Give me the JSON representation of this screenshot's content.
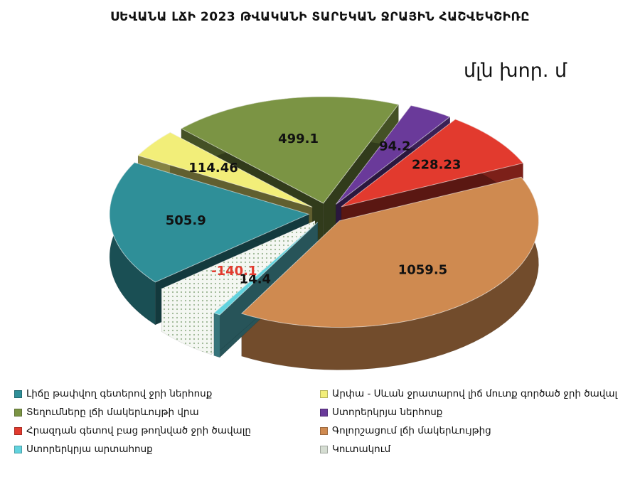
{
  "chart_data": {
    "type": "pie",
    "title": "ՍԵՎԱՆԱ ԼՃԻ 2023 ԹՎԱԿԱՆԻ ՏԱՐԵԿԱՆ ՋՐԱՅԻՆ ՀԱՇՎԵԿՇԻՌԸ",
    "unit": "մլն խոր. մ",
    "slices": [
      {
        "label": "Լիճը թափվող գետերով ջրի ներհոսք",
        "value": 505.9,
        "display": "505.9",
        "color": "#2f8f98",
        "label_color": "#111111"
      },
      {
        "label": "Արփա - Սևան ջրատարով լիճ մուտք գործած ջրի ծավալ",
        "value": 114.46,
        "display": "114.46",
        "color": "#f2ee79",
        "label_color": "#111111"
      },
      {
        "label": "Տեղումները լճի մակերևույթի  վրա",
        "value": 499.1,
        "display": "499.1",
        "color": "#7b9444",
        "label_color": "#111111"
      },
      {
        "label": "Ստորերկրյա ներհոսք",
        "value": 94.2,
        "display": "94.2",
        "color": "#6a3a9a",
        "label_color": "#111111"
      },
      {
        "label": "Հրազդան գետով բաց թողնված ջրի ծավալը",
        "value": 228.23,
        "display": "228.23",
        "color": "#e23a2e",
        "label_color": "#111111"
      },
      {
        "label": "Գոլորշացում լճի մակերևույթից",
        "value": 1059.5,
        "display": "1059.5",
        "color": "#cf8a50",
        "label_color": "#111111"
      },
      {
        "label": "Ստորերկրյա արտահոսք",
        "value": 14.4,
        "display": "14.4",
        "color": "#62d3de",
        "label_color": "#111111"
      },
      {
        "label": "Կուտակում",
        "value": -140.1,
        "display": "-140.1",
        "color": "#cfd8cc",
        "label_color": "#e23a2e"
      }
    ],
    "legend_position": "bottom"
  }
}
